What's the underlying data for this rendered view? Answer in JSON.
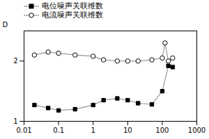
{
  "chart_data": {
    "type": "line",
    "ylabel": "D",
    "xlim": [
      0.01,
      1000
    ],
    "ylim": [
      1,
      2.5
    ],
    "xticks": [
      0.01,
      0.1,
      1,
      10,
      100,
      1000
    ],
    "yticks": [
      1,
      2
    ],
    "log": "x",
    "legend": "upper left",
    "series": [
      {
        "name": "电位噪声关联维数",
        "color": "#999999",
        "marker": "square",
        "x": [
          0.02,
          0.05,
          0.1,
          0.3,
          1,
          2,
          5,
          10,
          20,
          50,
          100,
          150,
          200
        ],
        "values": [
          1.27,
          1.22,
          1.18,
          1.2,
          1.27,
          1.35,
          1.38,
          1.35,
          1.3,
          1.28,
          1.5,
          1.92,
          1.9
        ]
      },
      {
        "name": "电流噪声关联维数",
        "color": "#999999",
        "marker": "open_circle",
        "x": [
          0.02,
          0.05,
          0.1,
          0.3,
          1,
          2,
          5,
          10,
          20,
          50,
          100,
          120,
          150,
          200
        ],
        "values": [
          2.1,
          2.15,
          2.13,
          2.1,
          2.08,
          2.02,
          2.0,
          2.0,
          2.0,
          2.02,
          2.05,
          2.3,
          2.0,
          2.05
        ]
      }
    ]
  }
}
